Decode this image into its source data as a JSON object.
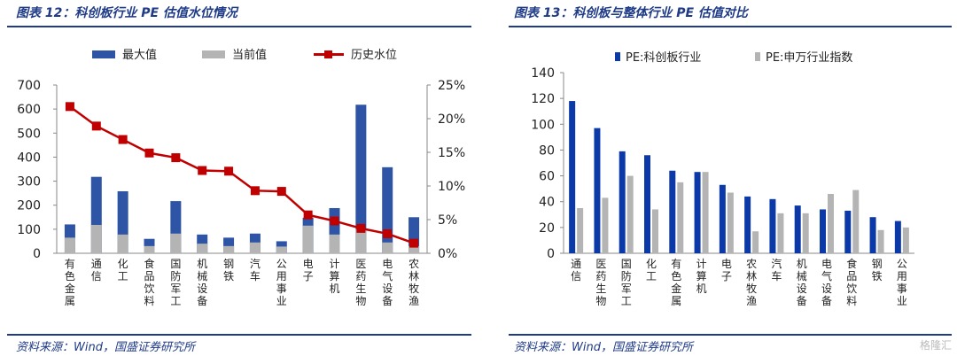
{
  "panel1": {
    "title": "图表 12：科创板行业 PE 估值水位情况",
    "source": "资料来源：Wind，国盛证券研究所"
  },
  "panel2": {
    "title": "图表 13：科创板与整体行业 PE 估值对比",
    "source": "资料来源：Wind，国盛证券研究所"
  },
  "watermark": "格隆汇",
  "colors": {
    "blue": "#2e54a5",
    "grey": "#b4b4b4",
    "red": "#c00000",
    "bar2": "#0b3aa8"
  },
  "chart_data": [
    {
      "type": "bar",
      "legend_position": "top",
      "categories": [
        "有色金属",
        "通信",
        "化工",
        "食品饮料",
        "国防军工",
        "机械设备",
        "钢铁",
        "汽车",
        "公用事业",
        "电子",
        "计算机",
        "医药生物",
        "电气设备",
        "农林牧渔"
      ],
      "series": [
        {
          "name": "最大值",
          "type": "bar",
          "axis": "left",
          "values": [
            120,
            318,
            258,
            60,
            217,
            78,
            65,
            82,
            50,
            148,
            188,
            618,
            358,
            150
          ]
        },
        {
          "name": "当前值",
          "type": "bar",
          "axis": "left",
          "values": [
            65,
            118,
            78,
            30,
            82,
            40,
            30,
            45,
            28,
            115,
            78,
            100,
            45,
            30
          ]
        },
        {
          "name": "历史水位",
          "type": "line",
          "axis": "right",
          "values": [
            21.8,
            18.9,
            16.9,
            14.9,
            14.2,
            12.3,
            12.2,
            9.3,
            9.2,
            5.7,
            4.8,
            3.7,
            2.9,
            1.5
          ]
        }
      ],
      "y_left": {
        "min": 0,
        "max": 700,
        "ticks": [
          "0",
          "100",
          "200",
          "300",
          "400",
          "500",
          "600",
          "700"
        ]
      },
      "y_right": {
        "min": 0,
        "max": 25,
        "ticks": [
          "0%",
          "5%",
          "10%",
          "15%",
          "20%",
          "25%"
        ]
      }
    },
    {
      "type": "bar",
      "legend_position": "top",
      "categories": [
        "通信",
        "医药生物",
        "国防军工",
        "化工",
        "有色金属",
        "计算机",
        "电子",
        "农林牧渔",
        "汽车",
        "机械设备",
        "电气设备",
        "食品饮料",
        "钢铁",
        "公用事业"
      ],
      "series": [
        {
          "name": "PE:科创板行业",
          "values": [
            118,
            97,
            79,
            76,
            64,
            63,
            53,
            44,
            42,
            37,
            34,
            33,
            28,
            25
          ]
        },
        {
          "name": "PE:申万行业指数",
          "values": [
            35,
            43,
            60,
            34,
            55,
            63,
            47,
            17,
            31,
            31,
            46,
            49,
            18,
            20
          ]
        }
      ],
      "y": {
        "min": 0,
        "max": 140,
        "ticks": [
          "0",
          "20",
          "40",
          "60",
          "80",
          "100",
          "120",
          "140"
        ]
      }
    }
  ]
}
